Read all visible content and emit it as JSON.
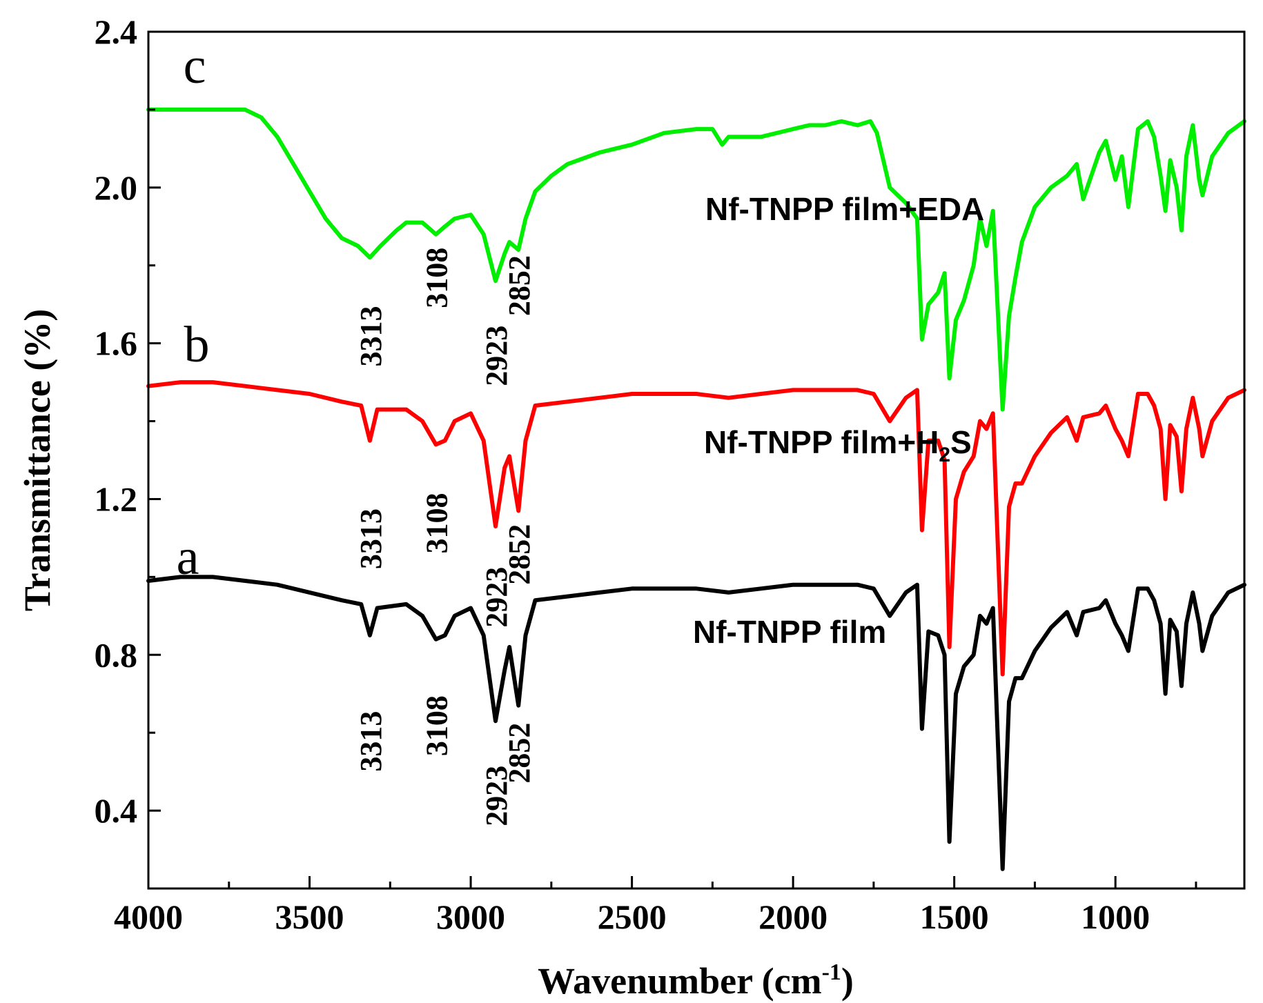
{
  "chart_data": {
    "type": "line",
    "xlabel": "Wavenumber (cm",
    "xlabel_sup": "-1",
    "xlabel_close": ")",
    "ylabel": "Transmittance (%)",
    "xlim": [
      4000,
      600
    ],
    "ylim": [
      0.2,
      2.4
    ],
    "x_ticks": [
      4000,
      3500,
      3000,
      2500,
      2000,
      1500,
      1000
    ],
    "x_tick_labels": [
      "4000",
      "3500",
      "3000",
      "2500",
      "2000",
      "1500",
      "1000"
    ],
    "y_ticks": [
      0.4,
      0.8,
      1.2,
      1.6,
      2.0,
      2.4
    ],
    "y_tick_labels": [
      "0.4",
      "0.8",
      "1.2",
      "1.6",
      "2.0",
      "2.4"
    ],
    "series": [
      {
        "name": "Nf-TNPP film",
        "letter": "a",
        "color": "#000000",
        "points": [
          [
            4000,
            0.99
          ],
          [
            3900,
            1.0
          ],
          [
            3800,
            1.0
          ],
          [
            3700,
            0.99
          ],
          [
            3600,
            0.98
          ],
          [
            3500,
            0.96
          ],
          [
            3400,
            0.94
          ],
          [
            3340,
            0.93
          ],
          [
            3313,
            0.85
          ],
          [
            3290,
            0.92
          ],
          [
            3200,
            0.93
          ],
          [
            3150,
            0.9
          ],
          [
            3108,
            0.84
          ],
          [
            3080,
            0.85
          ],
          [
            3050,
            0.9
          ],
          [
            3000,
            0.92
          ],
          [
            2960,
            0.85
          ],
          [
            2923,
            0.63
          ],
          [
            2895,
            0.76
          ],
          [
            2880,
            0.82
          ],
          [
            2852,
            0.67
          ],
          [
            2830,
            0.85
          ],
          [
            2800,
            0.94
          ],
          [
            2700,
            0.95
          ],
          [
            2600,
            0.96
          ],
          [
            2500,
            0.97
          ],
          [
            2300,
            0.97
          ],
          [
            2200,
            0.96
          ],
          [
            2100,
            0.97
          ],
          [
            2000,
            0.98
          ],
          [
            1900,
            0.98
          ],
          [
            1800,
            0.98
          ],
          [
            1750,
            0.97
          ],
          [
            1700,
            0.9
          ],
          [
            1650,
            0.96
          ],
          [
            1615,
            0.98
          ],
          [
            1600,
            0.61
          ],
          [
            1580,
            0.86
          ],
          [
            1550,
            0.85
          ],
          [
            1530,
            0.8
          ],
          [
            1515,
            0.32
          ],
          [
            1495,
            0.7
          ],
          [
            1470,
            0.77
          ],
          [
            1440,
            0.8
          ],
          [
            1420,
            0.9
          ],
          [
            1400,
            0.88
          ],
          [
            1380,
            0.92
          ],
          [
            1350,
            0.25
          ],
          [
            1330,
            0.68
          ],
          [
            1310,
            0.74
          ],
          [
            1290,
            0.74
          ],
          [
            1250,
            0.81
          ],
          [
            1200,
            0.87
          ],
          [
            1150,
            0.91
          ],
          [
            1120,
            0.85
          ],
          [
            1100,
            0.91
          ],
          [
            1050,
            0.92
          ],
          [
            1030,
            0.94
          ],
          [
            1000,
            0.88
          ],
          [
            980,
            0.85
          ],
          [
            960,
            0.81
          ],
          [
            930,
            0.97
          ],
          [
            900,
            0.97
          ],
          [
            880,
            0.94
          ],
          [
            860,
            0.88
          ],
          [
            845,
            0.7
          ],
          [
            830,
            0.89
          ],
          [
            810,
            0.86
          ],
          [
            795,
            0.72
          ],
          [
            780,
            0.88
          ],
          [
            760,
            0.96
          ],
          [
            740,
            0.88
          ],
          [
            730,
            0.81
          ],
          [
            700,
            0.9
          ],
          [
            650,
            0.96
          ],
          [
            600,
            0.98
          ]
        ]
      },
      {
        "name": "Nf-TNPP film+H",
        "name_sub": "2",
        "name_suffix": "S",
        "letter": "b",
        "color": "#ff0000",
        "points": [
          [
            4000,
            1.49
          ],
          [
            3900,
            1.5
          ],
          [
            3800,
            1.5
          ],
          [
            3700,
            1.49
          ],
          [
            3600,
            1.48
          ],
          [
            3500,
            1.47
          ],
          [
            3400,
            1.45
          ],
          [
            3340,
            1.44
          ],
          [
            3313,
            1.35
          ],
          [
            3290,
            1.43
          ],
          [
            3200,
            1.43
          ],
          [
            3150,
            1.4
          ],
          [
            3108,
            1.34
          ],
          [
            3080,
            1.35
          ],
          [
            3050,
            1.4
          ],
          [
            3000,
            1.42
          ],
          [
            2960,
            1.35
          ],
          [
            2923,
            1.13
          ],
          [
            2895,
            1.28
          ],
          [
            2880,
            1.31
          ],
          [
            2852,
            1.17
          ],
          [
            2830,
            1.35
          ],
          [
            2800,
            1.44
          ],
          [
            2700,
            1.45
          ],
          [
            2600,
            1.46
          ],
          [
            2500,
            1.47
          ],
          [
            2300,
            1.47
          ],
          [
            2200,
            1.46
          ],
          [
            2100,
            1.47
          ],
          [
            2000,
            1.48
          ],
          [
            1900,
            1.48
          ],
          [
            1800,
            1.48
          ],
          [
            1750,
            1.47
          ],
          [
            1700,
            1.4
          ],
          [
            1650,
            1.46
          ],
          [
            1615,
            1.48
          ],
          [
            1600,
            1.12
          ],
          [
            1580,
            1.35
          ],
          [
            1550,
            1.35
          ],
          [
            1530,
            1.3
          ],
          [
            1515,
            0.82
          ],
          [
            1495,
            1.2
          ],
          [
            1470,
            1.27
          ],
          [
            1440,
            1.31
          ],
          [
            1420,
            1.4
          ],
          [
            1400,
            1.38
          ],
          [
            1380,
            1.42
          ],
          [
            1350,
            0.75
          ],
          [
            1330,
            1.18
          ],
          [
            1310,
            1.24
          ],
          [
            1290,
            1.24
          ],
          [
            1250,
            1.31
          ],
          [
            1200,
            1.37
          ],
          [
            1150,
            1.41
          ],
          [
            1120,
            1.35
          ],
          [
            1100,
            1.41
          ],
          [
            1050,
            1.42
          ],
          [
            1030,
            1.44
          ],
          [
            1000,
            1.38
          ],
          [
            980,
            1.35
          ],
          [
            960,
            1.31
          ],
          [
            930,
            1.47
          ],
          [
            900,
            1.47
          ],
          [
            880,
            1.44
          ],
          [
            860,
            1.38
          ],
          [
            845,
            1.2
          ],
          [
            830,
            1.39
          ],
          [
            810,
            1.36
          ],
          [
            795,
            1.22
          ],
          [
            780,
            1.38
          ],
          [
            760,
            1.46
          ],
          [
            740,
            1.38
          ],
          [
            730,
            1.31
          ],
          [
            700,
            1.4
          ],
          [
            650,
            1.46
          ],
          [
            600,
            1.48
          ]
        ]
      },
      {
        "name": "Nf-TNPP film+EDA",
        "letter": "c",
        "color": "#00ee00",
        "points": [
          [
            4000,
            2.2
          ],
          [
            3900,
            2.2
          ],
          [
            3800,
            2.2
          ],
          [
            3700,
            2.2
          ],
          [
            3650,
            2.18
          ],
          [
            3600,
            2.13
          ],
          [
            3550,
            2.06
          ],
          [
            3500,
            1.99
          ],
          [
            3450,
            1.92
          ],
          [
            3400,
            1.87
          ],
          [
            3350,
            1.85
          ],
          [
            3313,
            1.82
          ],
          [
            3280,
            1.85
          ],
          [
            3230,
            1.89
          ],
          [
            3200,
            1.91
          ],
          [
            3150,
            1.91
          ],
          [
            3108,
            1.88
          ],
          [
            3080,
            1.9
          ],
          [
            3050,
            1.92
          ],
          [
            3000,
            1.93
          ],
          [
            2960,
            1.88
          ],
          [
            2923,
            1.76
          ],
          [
            2895,
            1.83
          ],
          [
            2880,
            1.86
          ],
          [
            2852,
            1.84
          ],
          [
            2830,
            1.92
          ],
          [
            2800,
            1.99
          ],
          [
            2750,
            2.03
          ],
          [
            2700,
            2.06
          ],
          [
            2600,
            2.09
          ],
          [
            2500,
            2.11
          ],
          [
            2400,
            2.14
          ],
          [
            2300,
            2.15
          ],
          [
            2250,
            2.15
          ],
          [
            2220,
            2.11
          ],
          [
            2200,
            2.13
          ],
          [
            2100,
            2.13
          ],
          [
            2000,
            2.15
          ],
          [
            1950,
            2.16
          ],
          [
            1900,
            2.16
          ],
          [
            1850,
            2.17
          ],
          [
            1800,
            2.16
          ],
          [
            1760,
            2.17
          ],
          [
            1740,
            2.14
          ],
          [
            1700,
            2.0
          ],
          [
            1650,
            1.96
          ],
          [
            1615,
            1.92
          ],
          [
            1600,
            1.61
          ],
          [
            1580,
            1.7
          ],
          [
            1550,
            1.73
          ],
          [
            1530,
            1.78
          ],
          [
            1515,
            1.51
          ],
          [
            1495,
            1.66
          ],
          [
            1470,
            1.71
          ],
          [
            1440,
            1.8
          ],
          [
            1420,
            1.92
          ],
          [
            1400,
            1.85
          ],
          [
            1380,
            1.94
          ],
          [
            1350,
            1.43
          ],
          [
            1330,
            1.67
          ],
          [
            1310,
            1.77
          ],
          [
            1290,
            1.86
          ],
          [
            1250,
            1.95
          ],
          [
            1200,
            2.0
          ],
          [
            1150,
            2.03
          ],
          [
            1120,
            2.06
          ],
          [
            1100,
            1.97
          ],
          [
            1050,
            2.09
          ],
          [
            1030,
            2.12
          ],
          [
            1000,
            2.02
          ],
          [
            980,
            2.08
          ],
          [
            960,
            1.95
          ],
          [
            930,
            2.15
          ],
          [
            900,
            2.17
          ],
          [
            880,
            2.13
          ],
          [
            860,
            2.03
          ],
          [
            845,
            1.94
          ],
          [
            830,
            2.07
          ],
          [
            810,
            2.0
          ],
          [
            795,
            1.89
          ],
          [
            780,
            2.08
          ],
          [
            760,
            2.16
          ],
          [
            740,
            2.02
          ],
          [
            730,
            1.98
          ],
          [
            700,
            2.08
          ],
          [
            650,
            2.14
          ],
          [
            600,
            2.17
          ]
        ]
      }
    ],
    "peak_labels": [
      {
        "text": "3313",
        "x": 3313,
        "y": 1.54,
        "series": "c"
      },
      {
        "text": "3108",
        "x": 3108,
        "y": 1.69,
        "series": "c"
      },
      {
        "text": "2923",
        "x": 2923,
        "y": 1.49,
        "series": "c"
      },
      {
        "text": "2852",
        "x": 2852,
        "y": 1.67,
        "series": "c"
      },
      {
        "text": "3313",
        "x": 3313,
        "y": 1.02,
        "series": "b"
      },
      {
        "text": "3108",
        "x": 3108,
        "y": 1.06,
        "series": "b"
      },
      {
        "text": "2923",
        "x": 2923,
        "y": 0.87,
        "series": "b"
      },
      {
        "text": "2852",
        "x": 2852,
        "y": 0.98,
        "series": "b"
      },
      {
        "text": "3313",
        "x": 3313,
        "y": 0.5,
        "series": "a"
      },
      {
        "text": "3108",
        "x": 3108,
        "y": 0.54,
        "series": "a"
      },
      {
        "text": "2923",
        "x": 2923,
        "y": 0.36,
        "series": "a"
      },
      {
        "text": "2852",
        "x": 2852,
        "y": 0.47,
        "series": "a"
      }
    ],
    "grid": false
  }
}
